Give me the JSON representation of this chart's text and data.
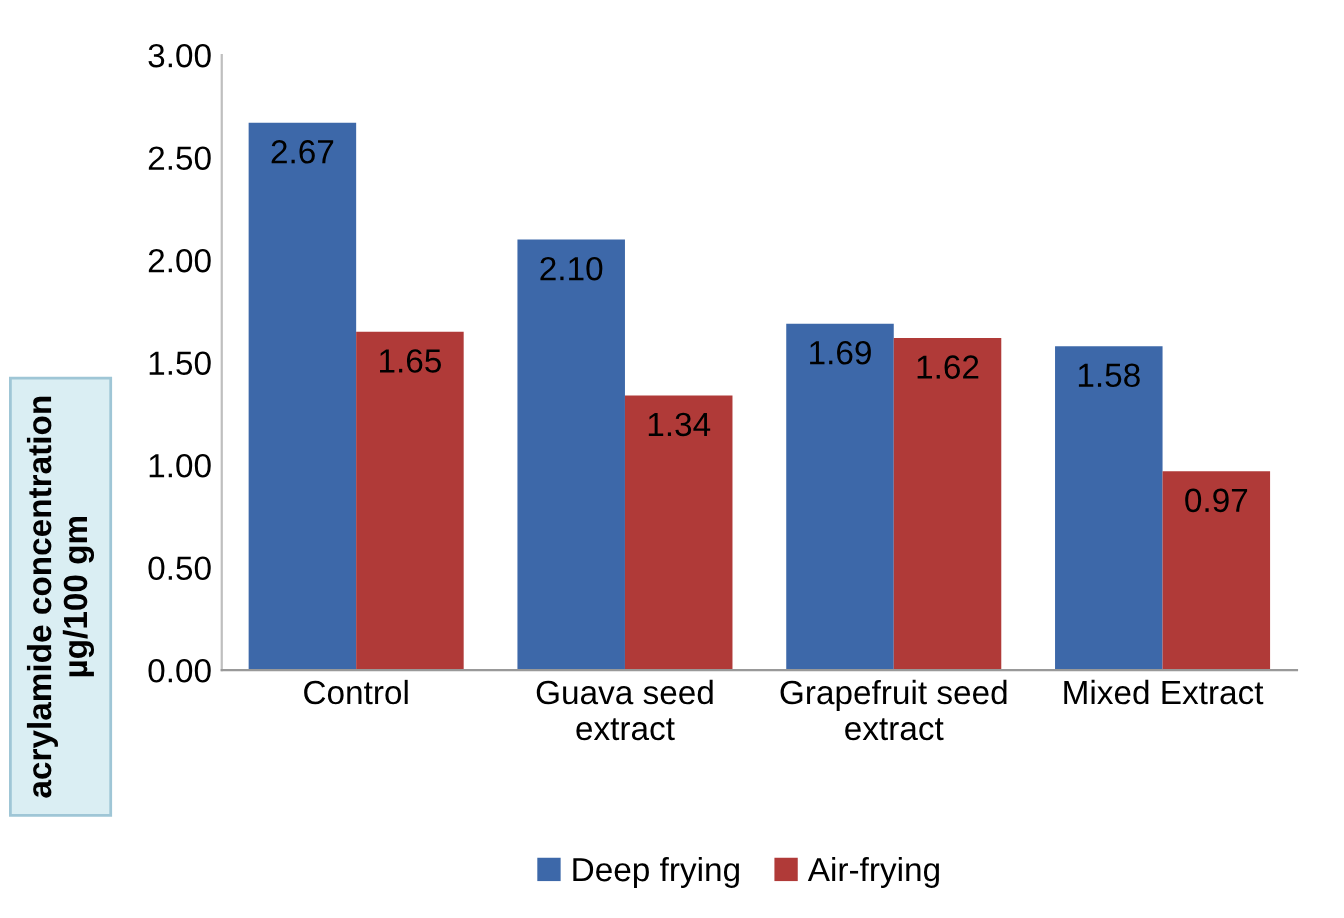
{
  "chart_data": {
    "type": "bar",
    "ylabel": "acrylamide concentration\nµg/100 gm",
    "categories": [
      "Control",
      "Guava seed\nextract",
      "Grapefruit seed\nextract",
      "Mixed Extract"
    ],
    "series": [
      {
        "name": "Deep frying",
        "color": "#3d68a9",
        "values": [
          2.67,
          2.1,
          1.69,
          1.58
        ],
        "value_labels": [
          "2.67",
          "2.10",
          "1.69",
          "1.58"
        ]
      },
      {
        "name": "Air-frying",
        "color": "#b03a38",
        "values": [
          1.65,
          1.34,
          1.62,
          0.97
        ],
        "value_labels": [
          "1.65",
          "1.34",
          "1.62",
          "0.97"
        ]
      }
    ],
    "ylim": [
      0,
      3
    ],
    "yticks": [
      {
        "value": 0,
        "label": "0.00"
      },
      {
        "value": 0.5,
        "label": "0.50"
      },
      {
        "value": 1,
        "label": "1.00"
      },
      {
        "value": 1.5,
        "label": "1.50"
      },
      {
        "value": 2,
        "label": "2.00"
      },
      {
        "value": 2.5,
        "label": "2.50"
      },
      {
        "value": 3,
        "label": "3.00"
      }
    ],
    "grid": false,
    "legend": "bottom"
  }
}
